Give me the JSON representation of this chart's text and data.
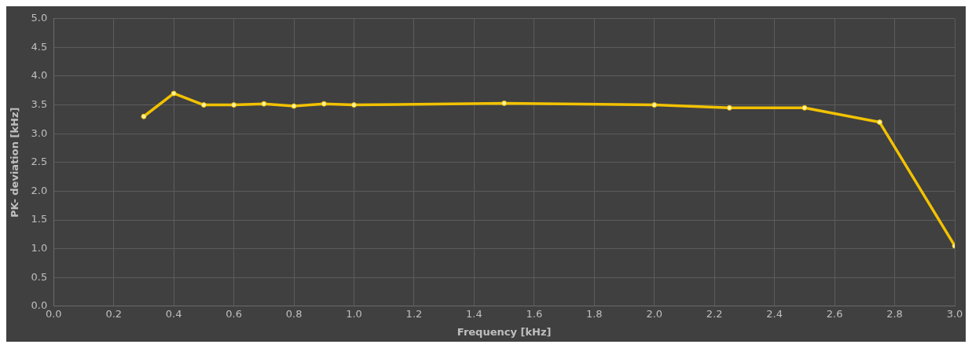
{
  "chart_data": {
    "type": "line",
    "xlabel": "Frequency [kHz]",
    "ylabel": "PK- deviation [kHz]",
    "x": [
      0.3,
      0.4,
      0.5,
      0.6,
      0.7,
      0.8,
      0.9,
      1.0,
      1.5,
      2.0,
      2.25,
      2.5,
      2.75,
      3.0
    ],
    "series": [
      {
        "color": "#f2c200",
        "values": [
          3.3,
          3.7,
          3.5,
          3.5,
          3.52,
          3.48,
          3.52,
          3.5,
          3.53,
          3.5,
          3.45,
          3.45,
          3.2,
          1.05
        ]
      }
    ],
    "xlim": [
      0,
      3
    ],
    "xticks": [
      {
        "value": 0,
        "label": "0.0"
      },
      0.2,
      0.4,
      0.6,
      0.8,
      {
        "value": 1,
        "label": "1.0"
      },
      1.2,
      1.4,
      1.6,
      1.8,
      {
        "value": 2,
        "label": "2.0"
      },
      2.2,
      2.4,
      2.6,
      2.8,
      {
        "value": 3,
        "label": "3.0"
      }
    ],
    "ylim": [
      0,
      5
    ],
    "yticks": [
      {
        "value": 0,
        "label": "0.0"
      },
      0.5,
      {
        "value": 1,
        "label": "1.0"
      },
      1.5,
      {
        "value": 2,
        "label": "2.0"
      },
      2.5,
      {
        "value": 3,
        "label": "3.0"
      },
      3.5,
      {
        "value": 4,
        "label": "4.0"
      },
      4.5,
      {
        "value": 5,
        "label": "5.0"
      }
    ],
    "grid": true,
    "marker": "circle",
    "line_style": "solid",
    "legend": false
  }
}
